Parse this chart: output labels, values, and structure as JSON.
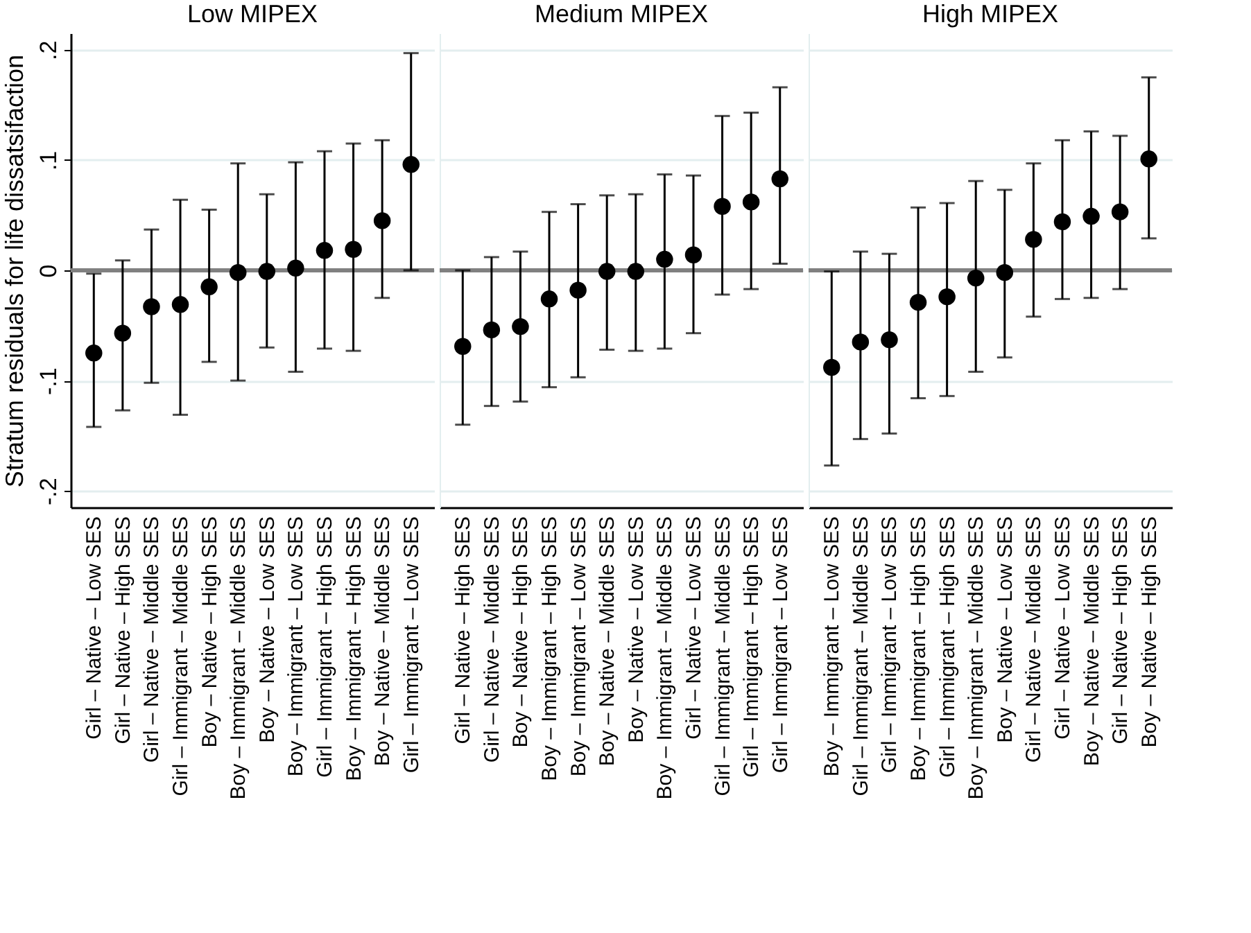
{
  "chart_data": [
    {
      "type": "scatter",
      "title": "Low MIPEX",
      "ylabel": "Stratum residuals for life dissatsifaction",
      "categories": [
        "Girl – Native – Low SES",
        "Girl – Native – High SES",
        "Girl – Native – Middle SES",
        "Girl – Immigrant – Middle SES",
        "Boy – Native – High SES",
        "Boy – Immigrant – Middle SES",
        "Boy – Native – Low SES",
        "Boy – Immigrant – Low SES",
        "Girl – Immigrant – High SES",
        "Boy – Immigrant – High SES",
        "Boy – Native – Middle SES",
        "Girl – Immigrant – Low SES"
      ],
      "values": [
        -0.075,
        -0.057,
        -0.033,
        -0.031,
        -0.015,
        -0.002,
        -0.001,
        0.002,
        0.018,
        0.019,
        0.045,
        0.096
      ],
      "errors": [
        [
          -0.142,
          -0.003
        ],
        [
          -0.127,
          0.009
        ],
        [
          -0.102,
          0.037
        ],
        [
          -0.131,
          0.064
        ],
        [
          -0.083,
          0.055
        ],
        [
          -0.1,
          0.097
        ],
        [
          -0.07,
          0.069
        ],
        [
          -0.092,
          0.098
        ],
        [
          -0.071,
          0.108
        ],
        [
          -0.073,
          0.115
        ],
        [
          -0.025,
          0.118
        ],
        [
          0.0,
          0.197
        ]
      ],
      "color": "#000000",
      "marker": "circle",
      "grid": "y",
      "ylim": [
        -0.215,
        0.215
      ],
      "yticks": [
        {
          "value": -0.2,
          "label": "-.2"
        },
        {
          "value": -0.1,
          "label": "-.1"
        },
        0,
        {
          "value": 0.1,
          "label": ".1"
        },
        {
          "value": 0.2,
          "label": ".2"
        }
      ],
      "ref_lines": [
        {
          "axis": "y",
          "value": 0,
          "color": "#808080"
        }
      ]
    },
    {
      "type": "scatter",
      "title": "Medium MIPEX",
      "categories": [
        "Girl – Native – High SES",
        "Girl – Native – Middle SES",
        "Boy – Native – High SES",
        "Boy – Immigrant – High SES",
        "Boy – Immigrant – Low SES",
        "Boy – Native – Middle SES",
        "Boy – Native – Low SES",
        "Boy – Immigrant – Middle SES",
        "Girl – Native – Low SES",
        "Girl – Immigrant – Middle SES",
        "Girl – Immigrant – High SES",
        "Girl – Immigrant – Low SES"
      ],
      "values": [
        -0.069,
        -0.054,
        -0.051,
        -0.026,
        -0.018,
        -0.001,
        -0.001,
        0.01,
        0.014,
        0.058,
        0.062,
        0.083
      ],
      "errors": [
        [
          -0.14,
          0.0
        ],
        [
          -0.123,
          0.012
        ],
        [
          -0.119,
          0.017
        ],
        [
          -0.106,
          0.053
        ],
        [
          -0.097,
          0.06
        ],
        [
          -0.072,
          0.068
        ],
        [
          -0.073,
          0.069
        ],
        [
          -0.071,
          0.087
        ],
        [
          -0.057,
          0.086
        ],
        [
          -0.022,
          0.14
        ],
        [
          -0.017,
          0.143
        ],
        [
          0.006,
          0.166
        ]
      ],
      "color": "#000000",
      "marker": "circle",
      "grid": "y",
      "ylim": [
        -0.215,
        0.215
      ],
      "tick_labels": "x",
      "yticks": [
        -0.2,
        -0.1,
        0,
        0.1,
        0.2
      ],
      "ref_lines": [
        {
          "axis": "y",
          "value": 0,
          "color": "#808080"
        }
      ]
    },
    {
      "type": "scatter",
      "title": "High MIPEX",
      "categories": [
        "Boy – Immigrant – Low SES",
        "Girl – Immigrant – Middle SES",
        "Girl – Immigrant – Low SES",
        "Boy – Immigrant – High SES",
        "Girl – Immigrant – High SES",
        "Boy – Immigrant – Middle SES",
        "Boy – Native – Low SES",
        "Girl – Native – Middle SES",
        "Girl – Native – Low SES",
        "Boy – Native – Middle SES",
        "Girl – Native – High SES",
        "Boy – Native – High SES"
      ],
      "values": [
        -0.088,
        -0.065,
        -0.063,
        -0.029,
        -0.024,
        -0.007,
        -0.002,
        0.028,
        0.044,
        0.049,
        0.053,
        0.101
      ],
      "errors": [
        [
          -0.177,
          -0.001
        ],
        [
          -0.153,
          0.017
        ],
        [
          -0.148,
          0.015
        ],
        [
          -0.116,
          0.057
        ],
        [
          -0.114,
          0.061
        ],
        [
          -0.092,
          0.081
        ],
        [
          -0.079,
          0.073
        ],
        [
          -0.042,
          0.097
        ],
        [
          -0.026,
          0.118
        ],
        [
          -0.025,
          0.126
        ],
        [
          -0.017,
          0.122
        ],
        [
          0.029,
          0.175
        ]
      ],
      "color": "#000000",
      "marker": "circle",
      "grid": "y",
      "ylim": [
        -0.215,
        0.215
      ],
      "tick_labels": "x",
      "yticks": [
        -0.2,
        -0.1,
        0,
        0.1,
        0.2
      ],
      "ref_lines": [
        {
          "axis": "y",
          "value": 0,
          "color": "#808080"
        }
      ]
    }
  ]
}
